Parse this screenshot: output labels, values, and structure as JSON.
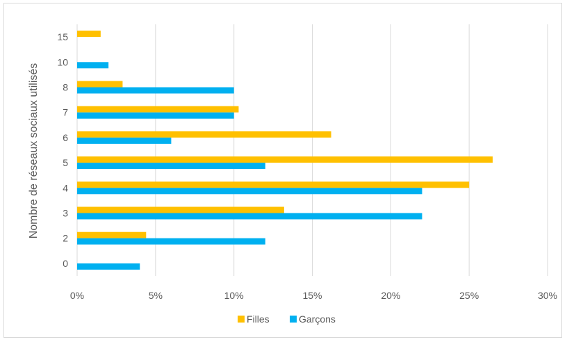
{
  "chart_data": {
    "type": "bar",
    "orientation": "horizontal",
    "categories": [
      "15",
      "10",
      "8",
      "7",
      "6",
      "5",
      "4",
      "3",
      "2",
      "0"
    ],
    "series": [
      {
        "name": "Filles",
        "color": "#FFC000",
        "values": [
          1.5,
          0,
          2.9,
          10.3,
          16.2,
          26.5,
          25.0,
          13.2,
          4.4,
          0
        ]
      },
      {
        "name": "Garçons",
        "color": "#00B0F0",
        "values": [
          0,
          2.0,
          10.0,
          10.0,
          6.0,
          12.0,
          22.0,
          22.0,
          12.0,
          4.0
        ]
      }
    ],
    "ylabel": "Nombre de réseaux sociaux utilisés",
    "xlabel": "",
    "xlim": [
      0,
      30
    ],
    "xticks": [
      "0%",
      "5%",
      "10%",
      "15%",
      "20%",
      "25%",
      "30%"
    ],
    "grid": true,
    "legend_position": "bottom",
    "gridline_color": "#d9d9d9"
  }
}
